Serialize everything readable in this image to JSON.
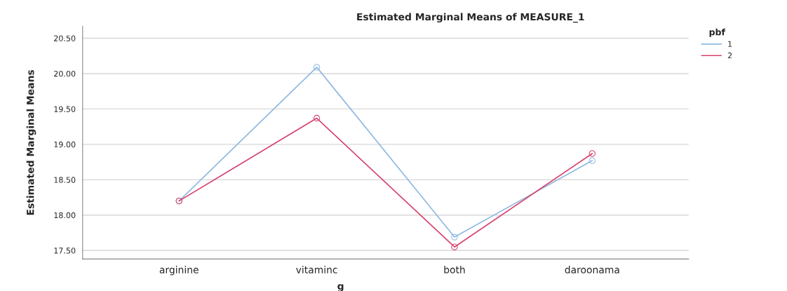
{
  "chart_data": {
    "type": "line",
    "title": "Estimated Marginal Means of MEASURE_1",
    "xlabel": "g",
    "ylabel": "Estimated Marginal Means",
    "legend_title": "pbf",
    "categories": [
      "arginine",
      "vitaminc",
      "both",
      "daroonama"
    ],
    "series": [
      {
        "name": "1",
        "color": "#8fb8e0",
        "values": [
          18.2,
          20.09,
          17.69,
          18.77
        ]
      },
      {
        "name": "2",
        "color": "#d6436e",
        "values": [
          18.2,
          19.37,
          17.55,
          18.87
        ]
      }
    ],
    "ylim": [
      17.38,
      20.67
    ],
    "yticks": [
      {
        "value": 17.5,
        "label": "17.50"
      },
      {
        "value": 18.0,
        "label": "18.00"
      },
      {
        "value": 18.5,
        "label": "18.50"
      },
      {
        "value": 19.0,
        "label": "19.00"
      },
      {
        "value": 19.5,
        "label": "19.50"
      },
      {
        "value": 20.0,
        "label": "20.00"
      },
      {
        "value": 20.5,
        "label": "20.50"
      }
    ],
    "grid": "y",
    "legend": "top right",
    "marker": "circle",
    "line_style": "solid"
  }
}
